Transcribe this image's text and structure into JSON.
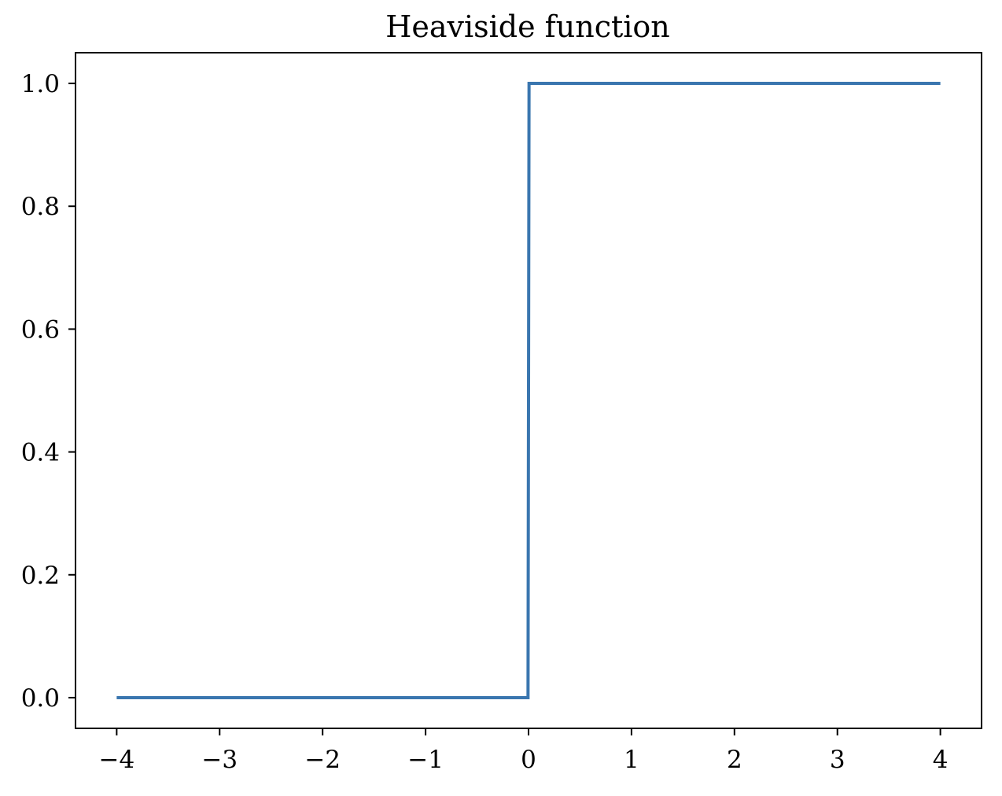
{
  "chart_data": {
    "type": "line",
    "title": "Heaviside function",
    "xlabel": "",
    "ylabel": "",
    "xlim": [
      -4.4,
      4.4
    ],
    "ylim": [
      -0.05,
      1.05
    ],
    "xticks": [
      -4,
      -3,
      -2,
      -1,
      0,
      1,
      2,
      3,
      4
    ],
    "xtick_labels": [
      "−4",
      "−3",
      "−2",
      "−1",
      "0",
      "1",
      "2",
      "3",
      "4"
    ],
    "yticks": [
      0.0,
      0.2,
      0.4,
      0.6,
      0.8,
      1.0
    ],
    "ytick_labels": [
      "0.0",
      "0.2",
      "0.4",
      "0.6",
      "0.8",
      "1.0"
    ],
    "grid": false,
    "series": [
      {
        "color": "#3a76af",
        "x": [
          -4,
          -0.005,
          0.005,
          4
        ],
        "y": [
          0,
          0,
          1,
          1
        ]
      }
    ]
  }
}
